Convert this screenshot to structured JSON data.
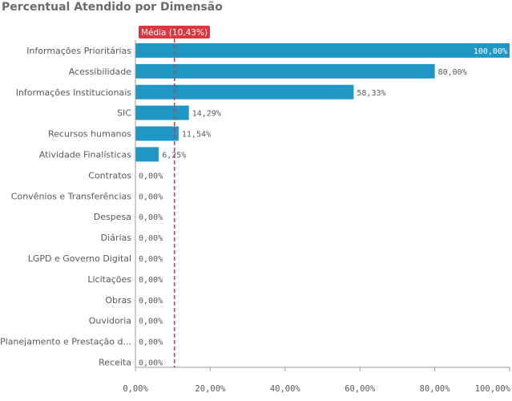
{
  "chart_data": {
    "type": "bar",
    "orientation": "horizontal",
    "title": "Percentual Atendido por Dimensão",
    "categories": [
      "Informações Prioritárias",
      "Acessibilidade",
      "Informações Institucionais",
      "SIC",
      "Recursos humanos",
      "Atividade Finalísticas",
      "Contratos",
      "Convênios e Transferências",
      "Despesa",
      "Diárias",
      "LGPD e Governo Digital",
      "Licitações",
      "Obras",
      "Ouvidoria",
      "Planejamento e Prestação d...",
      "Receita"
    ],
    "values": [
      100.0,
      80.0,
      58.33,
      14.29,
      11.54,
      6.25,
      0,
      0,
      0,
      0,
      0,
      0,
      0,
      0,
      0,
      0
    ],
    "value_labels": [
      "100,00%",
      "80,00%",
      "58,33%",
      "14,29%",
      "11,54%",
      "6,25%",
      "0,00%",
      "0,00%",
      "0,00%",
      "0,00%",
      "0,00%",
      "0,00%",
      "0,00%",
      "0,00%",
      "0,00%",
      "0,00%"
    ],
    "xlim": [
      0,
      100
    ],
    "xticks": [
      0,
      20,
      40,
      60,
      80,
      100
    ],
    "xtick_labels": [
      "0,00%",
      "20,00%",
      "40,00%",
      "60,00%",
      "80,00%",
      "100,00%"
    ],
    "reference_line": {
      "value": 10.43,
      "label": "Média (10,43%)",
      "color": "#d9383e"
    },
    "bar_color": "#1f97c4",
    "grid": false,
    "legend": "none"
  }
}
